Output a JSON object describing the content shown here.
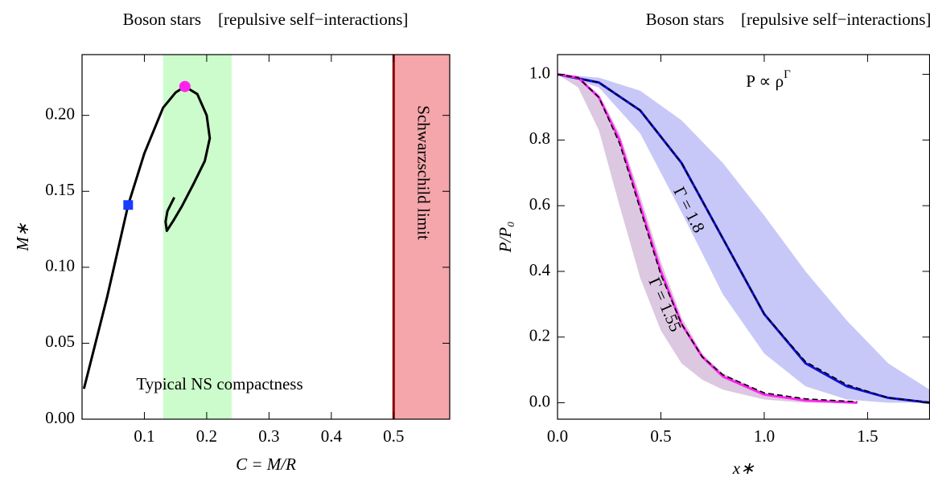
{
  "chart_data": [
    {
      "type": "line",
      "title": "Boson stars    [repulsive self−interactions]",
      "x_label": "C = M/R",
      "y_label": "M∗",
      "xlim": [
        0,
        0.59
      ],
      "ylim": [
        0,
        0.24
      ],
      "xticks": [
        0.1,
        0.2,
        0.3,
        0.4,
        0.5
      ],
      "yticks": [
        {
          "value": 0,
          "label": "0.00"
        },
        0.05,
        {
          "value": 0.1,
          "label": "0.10"
        },
        0.15,
        {
          "value": 0.2,
          "label": "0.20"
        }
      ],
      "vspans": [
        {
          "range": [
            0.13,
            0.24
          ],
          "color": "#ccfccc",
          "label": "Typical NS compactness",
          "label_color": "#2ec52e"
        },
        {
          "range": [
            0.5,
            0.59
          ],
          "color": "#f4a6aa",
          "edge_color": "#8b0000",
          "label": "Schwarzschild limit",
          "label_color": "#a01515"
        }
      ],
      "series": [
        {
          "color": "#000000",
          "x": [
            0.003,
            0.04,
            0.074,
            0.1,
            0.13,
            0.15,
            0.165,
            0.185,
            0.2,
            0.205,
            0.197,
            0.179,
            0.16,
            0.147,
            0.136,
            0.134,
            0.137,
            0.148
          ],
          "values": [
            0.02,
            0.08,
            0.141,
            0.175,
            0.205,
            0.215,
            0.219,
            0.214,
            0.2,
            0.185,
            0.17,
            0.155,
            0.14,
            0.131,
            0.124,
            0.13,
            0.137,
            0.146
          ]
        }
      ],
      "markers": [
        {
          "x": 0.074,
          "y": 0.141,
          "shape": "square",
          "color": "#1a3cff"
        },
        {
          "x": 0.165,
          "y": 0.219,
          "shape": "circle",
          "color": "#ff22ee"
        }
      ]
    },
    {
      "type": "line",
      "title": "Boson stars    [repulsive self−interactions]",
      "x_label": "x∗",
      "y_label": "P/P₀",
      "xlim": [
        0,
        1.8
      ],
      "ylim": [
        -0.05,
        1.06
      ],
      "xticks": [
        {
          "value": 0,
          "label": "0.0"
        },
        0.5,
        {
          "value": 1,
          "label": "1.0"
        },
        1.5
      ],
      "yticks": [
        {
          "value": 0,
          "label": "0.0"
        },
        0.2,
        0.4,
        0.6,
        0.8,
        {
          "value": 1,
          "label": "1.0"
        }
      ],
      "bands": [
        {
          "color": "#c8c8f8",
          "x": [
            0,
            0.2,
            0.4,
            0.6,
            0.8,
            1.0,
            1.2,
            1.4,
            1.6,
            1.8
          ],
          "upper": [
            1,
            0.99,
            0.95,
            0.86,
            0.73,
            0.57,
            0.4,
            0.25,
            0.12,
            0.04
          ],
          "lower": [
            1,
            0.96,
            0.82,
            0.58,
            0.33,
            0.15,
            0.05,
            0.01,
            0,
            0
          ]
        },
        {
          "color": "#dcc8e0",
          "x": [
            0,
            0.1,
            0.2,
            0.3,
            0.4,
            0.5,
            0.6,
            0.7,
            0.8,
            1.0,
            1.2,
            1.45
          ],
          "upper": [
            1,
            0.99,
            0.94,
            0.82,
            0.63,
            0.43,
            0.26,
            0.15,
            0.09,
            0.03,
            0.01,
            0
          ],
          "lower": [
            1,
            0.96,
            0.83,
            0.6,
            0.38,
            0.22,
            0.12,
            0.07,
            0.04,
            0.01,
            0,
            0
          ]
        }
      ],
      "series": [
        {
          "color": "#1010d8",
          "x": [
            0,
            0.2,
            0.4,
            0.6,
            0.8,
            1.0,
            1.2,
            1.4,
            1.6,
            1.8
          ],
          "values": [
            1,
            0.975,
            0.89,
            0.73,
            0.5,
            0.27,
            0.12,
            0.05,
            0.015,
            0
          ]
        },
        {
          "color": "#000000",
          "dash": true,
          "x": [
            0,
            0.2,
            0.4,
            0.6,
            0.8,
            1.0,
            1.2,
            1.4,
            1.6,
            1.8
          ],
          "values": [
            1,
            0.975,
            0.89,
            0.73,
            0.5,
            0.27,
            0.125,
            0.055,
            0.015,
            0.002
          ]
        },
        {
          "color": "#ff22ee",
          "x": [
            0,
            0.1,
            0.2,
            0.3,
            0.4,
            0.5,
            0.6,
            0.7,
            0.8,
            1.0,
            1.2,
            1.45
          ],
          "values": [
            1,
            0.99,
            0.93,
            0.8,
            0.6,
            0.4,
            0.24,
            0.14,
            0.08,
            0.025,
            0.007,
            0
          ]
        },
        {
          "color": "#000000",
          "dash": true,
          "x": [
            0,
            0.1,
            0.2,
            0.3,
            0.4,
            0.5,
            0.6,
            0.7,
            0.8,
            1.0,
            1.2,
            1.45
          ],
          "values": [
            1,
            0.99,
            0.93,
            0.79,
            0.59,
            0.39,
            0.24,
            0.14,
            0.085,
            0.03,
            0.012,
            0.003
          ]
        }
      ],
      "annotations": [
        {
          "text": "P ∝ ρ",
          "sup": "Γ",
          "color": "#000000"
        },
        {
          "text": "Γ = 1.8",
          "color": "#1a1a8a"
        },
        {
          "text": "Γ = 1.55",
          "color": "#4b1a5a"
        }
      ]
    }
  ]
}
